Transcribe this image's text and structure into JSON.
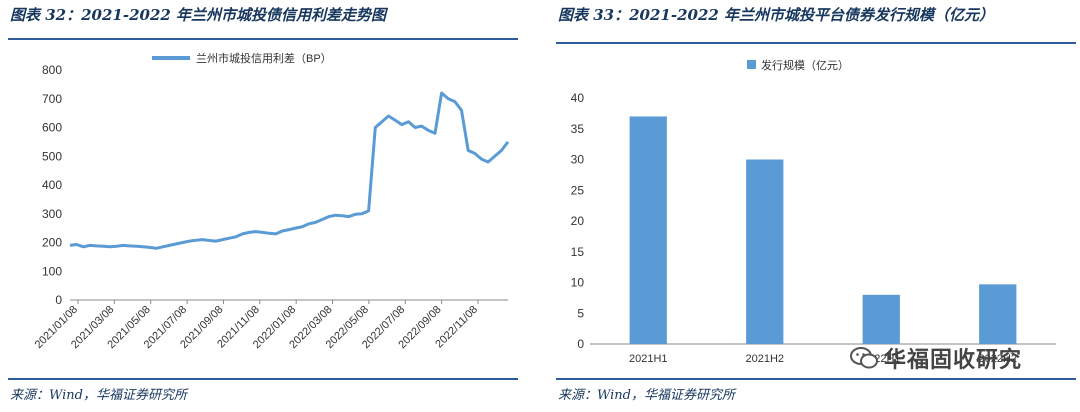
{
  "left_panel": {
    "title": "图表 32：2021-2022 年兰州市城投债信用利差走势图",
    "source": "来源：Wind，华福证券研究所"
  },
  "right_panel": {
    "title": "图表 33：2021-2022 年兰州市城投平台债券发行规模（亿元）",
    "source": "来源：Wind，华福证券研究所"
  },
  "watermark": {
    "text": "华福固收研究",
    "icon": "wechat-icon"
  },
  "chart_data": [
    {
      "type": "line",
      "series": [
        {
          "name": "兰州市城投信用利差（BP）",
          "color": "#5b9bd5",
          "values": [
            190,
            193,
            185,
            190,
            188,
            187,
            185,
            187,
            190,
            188,
            187,
            185,
            183,
            180,
            185,
            190,
            195,
            200,
            205,
            208,
            210,
            207,
            205,
            210,
            215,
            220,
            230,
            235,
            238,
            235,
            232,
            230,
            240,
            245,
            250,
            255,
            265,
            270,
            280,
            290,
            295,
            293,
            290,
            298,
            300,
            310,
            600,
            620,
            640,
            625,
            610,
            620,
            600,
            605,
            590,
            580,
            720,
            700,
            690,
            660,
            520,
            510,
            490,
            480,
            500,
            520,
            550
          ],
          "x": [
            "2021/01/08",
            "2021/01/15",
            "2021/01/22",
            "2021/01/29",
            "2021/02/05",
            "2021/02/12",
            "2021/02/19",
            "2021/02/26",
            "2021/03/08",
            "2021/03/15",
            "2021/03/22",
            "2021/03/29",
            "2021/04/05",
            "2021/04/12",
            "2021/04/19",
            "2021/04/26",
            "2021/05/08",
            "2021/05/15",
            "2021/05/22",
            "2021/05/29",
            "2021/06/05",
            "2021/06/12",
            "2021/06/19",
            "2021/06/26",
            "2021/07/08",
            "2021/07/15",
            "2021/07/22",
            "2021/07/29",
            "2021/08/05",
            "2021/08/12",
            "2021/08/19",
            "2021/08/26",
            "2021/09/08",
            "2021/09/15",
            "2021/09/22",
            "2021/09/29",
            "2021/10/08",
            "2021/10/15",
            "2021/10/22",
            "2021/10/29",
            "2021/11/08",
            "2021/11/15",
            "2021/11/22",
            "2021/11/29",
            "2021/12/08",
            "2021/12/15",
            "2022/01/08",
            "2022/01/15",
            "2022/01/22",
            "2022/01/29",
            "2022/02/08",
            "2022/02/15",
            "2022/02/22",
            "2022/03/08",
            "2022/03/22",
            "2022/04/08",
            "2022/04/22",
            "2022/05/08",
            "2022/05/22",
            "2022/06/08",
            "2022/06/22",
            "2022/07/08",
            "2022/07/22",
            "2022/08/08",
            "2022/08/22",
            "2022/09/08",
            "2022/09/22"
          ]
        }
      ],
      "tick_labels": [
        "2021/01/08",
        "2021/03/08",
        "2021/05/08",
        "2021/07/08",
        "2021/09/08",
        "2021/11/08",
        "2022/01/08",
        "2022/03/08",
        "2022/05/08",
        "2022/07/08",
        "2022/09/08",
        "2022/11/08"
      ],
      "ylim": [
        0,
        800
      ],
      "yticks": [
        0,
        100,
        200,
        300,
        400,
        500,
        600,
        700,
        800
      ],
      "legend": "top-center",
      "grid": false
    },
    {
      "type": "bar",
      "categories": [
        "2021H1",
        "2021H2",
        "2022H1",
        "2022H2"
      ],
      "series": [
        {
          "name": "发行规模（亿元）",
          "color": "#5b9bd5",
          "values": [
            37,
            30,
            8,
            9.7
          ]
        }
      ],
      "ylim": [
        0,
        40
      ],
      "yticks": [
        0,
        5,
        10,
        15,
        20,
        25,
        30,
        35,
        40
      ],
      "legend": "top-center",
      "grid": false
    }
  ]
}
